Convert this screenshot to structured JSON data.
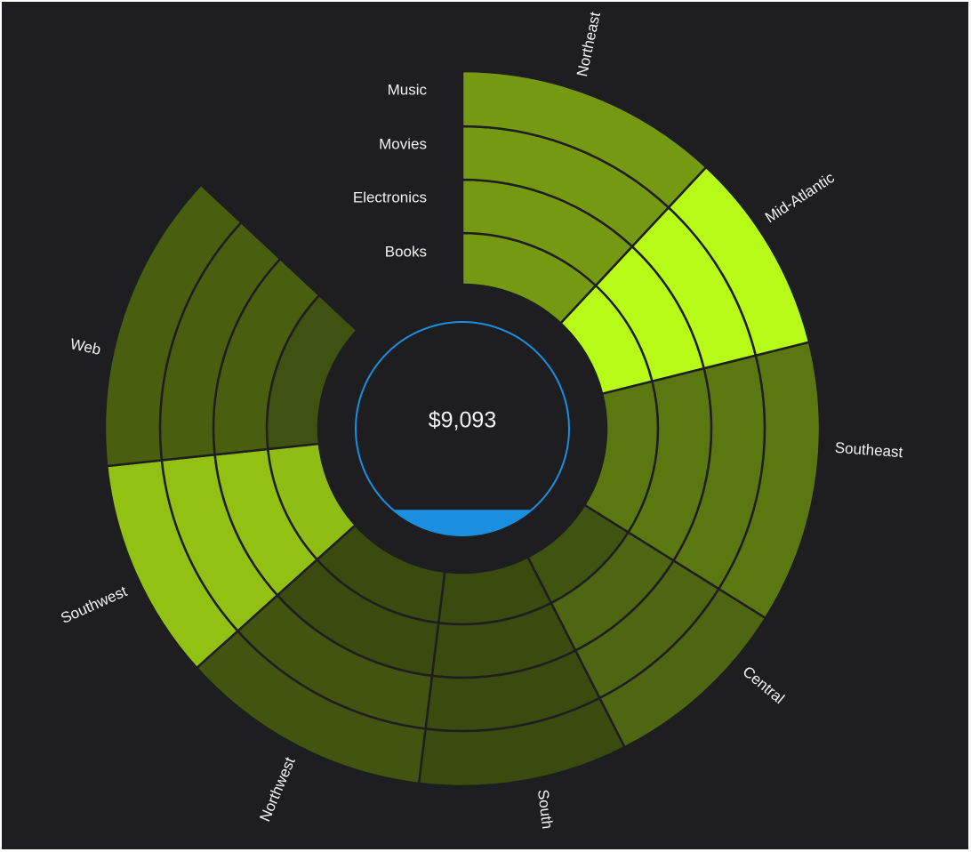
{
  "chart_data": {
    "type": "radial-heatmap",
    "title": "",
    "total_label": "$9,093",
    "rings_inner_to_outer": [
      "Books",
      "Electronics",
      "Movies",
      "Music"
    ],
    "row_labels_top_to_bottom": [
      "Music",
      "Movies",
      "Electronics",
      "Books"
    ],
    "segments": [
      "Northeast",
      "Mid-Atlantic",
      "Southeast",
      "Central",
      "South",
      "Northwest",
      "Southwest",
      "Web"
    ],
    "gauge_fill_fraction": 0.12,
    "colors": {
      "background": "#1e1e20",
      "gauge": "#1a8fe0",
      "cells": {
        "Northeast": [
          "#769912",
          "#769912",
          "#769912",
          "#769912"
        ],
        "Mid-Atlantic": [
          "#b7fa17",
          "#b7fa17",
          "#b7fa17",
          "#b7fa17"
        ],
        "Southeast": [
          "#5b7710",
          "#5b7710",
          "#5b7710",
          "#5b7710"
        ],
        "Central": [
          "#405411",
          "#4e6612",
          "#4e6612",
          "#4e6612"
        ],
        "South": [
          "#3b4a0f",
          "#3b4a0f",
          "#3b4a0f",
          "#3b4a0f"
        ],
        "Northwest": [
          "#3b4a0f",
          "#3b4a0f",
          "#435410",
          "#435410"
        ],
        "Southwest": [
          "#8fbd13",
          "#92c013",
          "#92c013",
          "#92c013"
        ],
        "Web": [
          "#405211",
          "#4a5e10",
          "#4a5e10",
          "#4a5e10"
        ]
      }
    }
  }
}
